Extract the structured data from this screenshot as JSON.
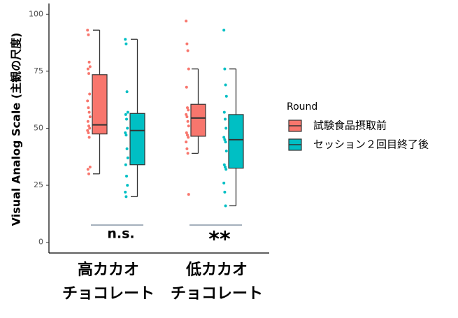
{
  "chart_data": {
    "type": "box",
    "y_label": "Visual Analog Scale (主観の尺度)",
    "categories": [
      "高カカオ\nチョコレート",
      "低カカオ\nチョコレート"
    ],
    "ylim": [
      -5,
      105
    ],
    "yticks": [
      0,
      25,
      50,
      75,
      100
    ],
    "legend_title": "Round",
    "legend_position": "right",
    "series": [
      {
        "name": "試験食品摂取前",
        "color": "#F8766D",
        "values": [
          [
            93,
            91,
            79,
            77,
            76,
            74,
            65,
            62,
            59,
            57,
            55,
            53,
            51,
            50,
            49,
            48,
            46,
            33,
            32,
            30
          ],
          [
            97,
            87,
            84,
            76,
            68,
            59,
            58,
            56,
            55,
            53,
            51,
            48,
            47,
            46,
            44,
            41,
            39,
            21
          ]
        ],
        "boxes": [
          {
            "whisker_low": 30,
            "q1": 47.5,
            "median": 51.5,
            "q3": 73.5,
            "whisker_high": 93
          },
          {
            "whisker_low": 39,
            "q1": 46.5,
            "median": 54.5,
            "q3": 60.5,
            "whisker_high": 76
          }
        ]
      },
      {
        "name": "セッション２回目終了後",
        "color": "#00BFC4",
        "values": [
          [
            89,
            87,
            66,
            57,
            56,
            54,
            50,
            48,
            47,
            41,
            37,
            34,
            29,
            25,
            22,
            20
          ],
          [
            93,
            76,
            69,
            64,
            57,
            54,
            50,
            46,
            45,
            44,
            40,
            34,
            33,
            32,
            26,
            22,
            16
          ]
        ],
        "boxes": [
          {
            "whisker_low": 20,
            "q1": 34,
            "median": 49,
            "q3": 56.5,
            "whisker_high": 89
          },
          {
            "whisker_low": 16,
            "q1": 32.5,
            "median": 45,
            "q3": 56,
            "whisker_high": 76
          }
        ]
      }
    ],
    "annotations": [
      {
        "text": "n.s."
      },
      {
        "text": "**"
      }
    ]
  }
}
